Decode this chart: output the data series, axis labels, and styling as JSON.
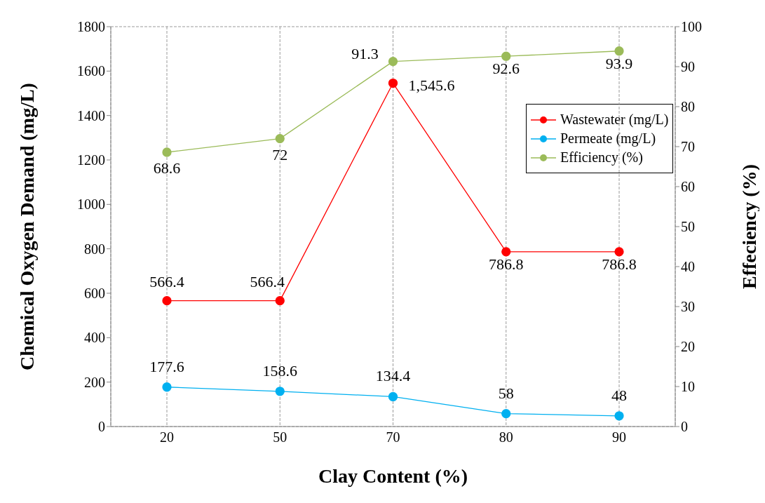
{
  "chart_data": {
    "type": "line",
    "xlabel": "Clay Content (%)",
    "ylabel": "Chemical Oxygen Demand (mg/L)",
    "y2label": "Effeciency (%)",
    "categories": [
      "20",
      "50",
      "70",
      "80",
      "90"
    ],
    "series": [
      {
        "name": "Wastewater (mg/L)",
        "color": "#ff0000",
        "values": [
          566.4,
          566.4,
          1545.6,
          786.8,
          786.8
        ],
        "value_labels": [
          "566.4",
          "566.4",
          "1,545.6",
          "786.8",
          "786.8"
        ]
      },
      {
        "name": "Permeate (mg/L)",
        "color": "#00b0f0",
        "values": [
          177.6,
          158.6,
          134.4,
          58,
          48
        ],
        "value_labels": [
          "177.6",
          "158.6",
          "134.4",
          "58",
          "48"
        ]
      },
      {
        "name": "Efficiency (%)",
        "color": "#9bbb59",
        "axis": "y2",
        "values": [
          68.6,
          72,
          91.3,
          92.6,
          93.9
        ],
        "value_labels": [
          "68.6",
          "72",
          "91.3",
          "92.6",
          "93.9"
        ]
      }
    ],
    "ylim": [
      0,
      1800
    ],
    "yticks": [
      0,
      200,
      400,
      600,
      800,
      1000,
      1200,
      1400,
      1600,
      1800
    ],
    "y2lim": [
      0,
      100
    ],
    "y2ticks": [
      0,
      10,
      20,
      30,
      40,
      50,
      60,
      70,
      80,
      90,
      100
    ],
    "grid": true,
    "legend": "top right",
    "marker": "circle",
    "line_style": "solid"
  }
}
